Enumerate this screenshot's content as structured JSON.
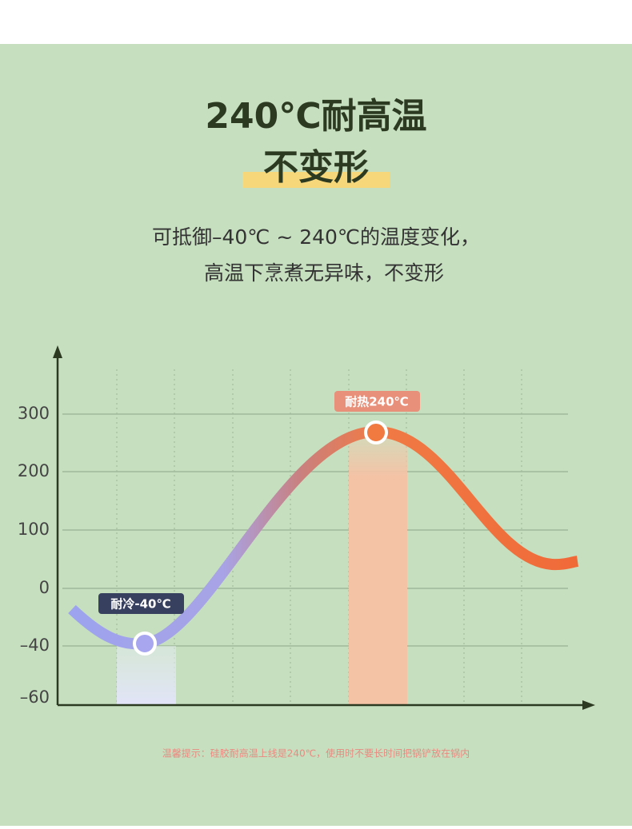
{
  "header": {
    "title": "240℃耐高温",
    "subtitle": "不变形"
  },
  "description": [
    "可抵御–40℃ ~ 240℃的温度变化，",
    "高温下烹煮无异味，不变形"
  ],
  "chart": {
    "y_axis_labels": [
      "300",
      "200",
      "100",
      "0",
      "–40",
      "–60"
    ],
    "annotations": {
      "cold": "耐冷-40℃",
      "hot": "耐热240℃"
    }
  },
  "footnote": "温馨提示：硅胶耐高温上线是240℃，使用时不要长时间把锅铲放在锅内"
}
